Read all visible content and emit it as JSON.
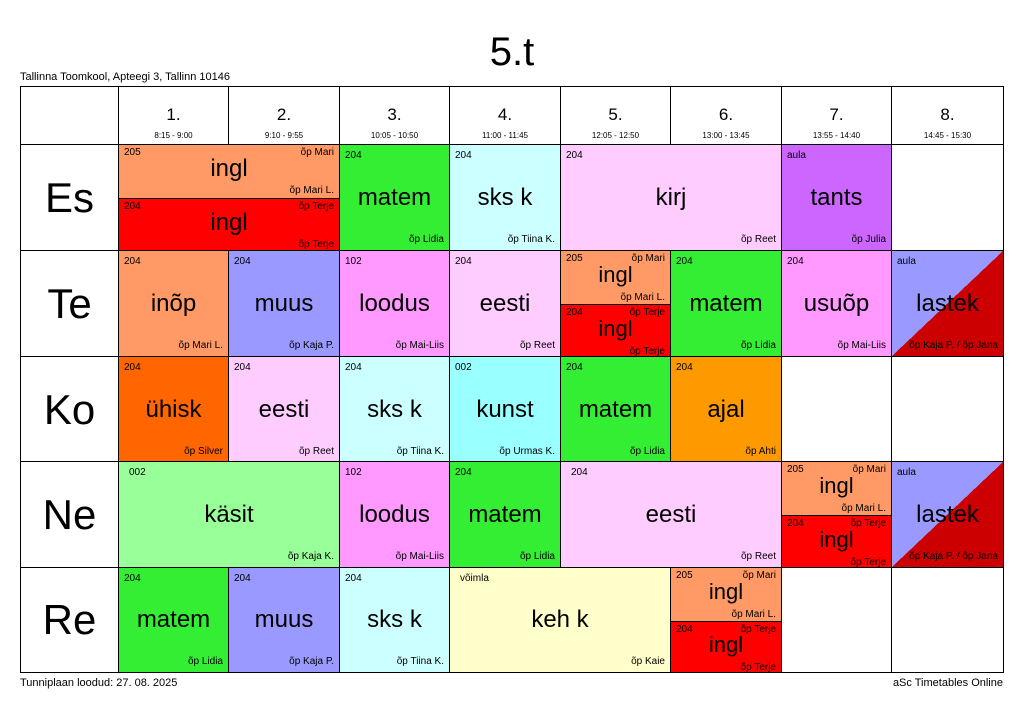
{
  "title": "5.t",
  "school": "Tallinna Toomkool, Apteegi 3, Tallinn 10146",
  "footer_left": "Tunniplaan loodud: 27. 08. 2025",
  "footer_right": "aSc Timetables Online",
  "periods": [
    {
      "num": "1.",
      "time": "8:15 - 9:00"
    },
    {
      "num": "2.",
      "time": "9:10 - 9:55"
    },
    {
      "num": "3.",
      "time": "10:05 - 10:50"
    },
    {
      "num": "4.",
      "time": "11:00 - 11:45"
    },
    {
      "num": "5.",
      "time": "12:05 - 12:50"
    },
    {
      "num": "6.",
      "time": "13:00 - 13:45"
    },
    {
      "num": "7.",
      "time": "13:55 - 14:40"
    },
    {
      "num": "8.",
      "time": "14:45 - 15:30"
    }
  ],
  "days": [
    "Es",
    "Te",
    "Ko",
    "Ne",
    "Re"
  ],
  "groups": {
    "g1_room": "205",
    "g1_subject": "ingl",
    "g1_teacher_top": "õp Mari",
    "g1_teacher": "õp Mari L.",
    "g2_room": "204",
    "g2_subject": "ingl",
    "g2_teacher_top": "õp Terje",
    "g2_teacher": "õp Terje"
  },
  "lessons": {
    "es_3": {
      "room": "204",
      "subject": "matem",
      "teacher": "õp Lidia",
      "color": "#33ee33"
    },
    "es_4": {
      "room": "204",
      "subject": "sks k",
      "teacher": "õp Tiina K.",
      "color": "#ccffff"
    },
    "es_56": {
      "room": "204",
      "subject": "kirj",
      "teacher": "õp Reet",
      "color": "#ffccff"
    },
    "es_7": {
      "room": "aula",
      "subject": "tants",
      "teacher": "õp Julia",
      "color": "#cc66ff"
    },
    "te_1": {
      "room": "204",
      "subject": "inõp",
      "teacher": "õp Mari L.",
      "color": "#ff9966"
    },
    "te_2": {
      "room": "204",
      "subject": "muus",
      "teacher": "õp Kaja P.",
      "color": "#9999ff"
    },
    "te_3": {
      "room": "102",
      "subject": "loodus",
      "teacher": "õp Mai-Liis",
      "color": "#ff99ff"
    },
    "te_4": {
      "room": "204",
      "subject": "eesti",
      "teacher": "õp Reet",
      "color": "#ffccff"
    },
    "te_6": {
      "room": "204",
      "subject": "matem",
      "teacher": "õp Lidia",
      "color": "#33ee33"
    },
    "te_7": {
      "room": "204",
      "subject": "usuõp",
      "teacher": "õp Mai-Liis",
      "color": "#ff99ff"
    },
    "te_8": {
      "room": "aula",
      "subject": "lastek",
      "teacher": "õp Kaja P. / õp Jana",
      "color_a": "#9999ff",
      "color_b": "#cc0000"
    },
    "ko_1": {
      "room": "204",
      "subject": "ühisk",
      "teacher": "õp Silver",
      "color": "#ff6600"
    },
    "ko_2": {
      "room": "204",
      "subject": "eesti",
      "teacher": "õp Reet",
      "color": "#ffccff"
    },
    "ko_3": {
      "room": "204",
      "subject": "sks k",
      "teacher": "õp Tiina K.",
      "color": "#ccffff"
    },
    "ko_4": {
      "room": "002",
      "subject": "kunst",
      "teacher": "õp Urmas K.",
      "color": "#99ffff"
    },
    "ko_5": {
      "room": "204",
      "subject": "matem",
      "teacher": "õp Lidia",
      "color": "#33ee33"
    },
    "ko_6": {
      "room": "204",
      "subject": "ajal",
      "teacher": "õp Ahti",
      "color": "#ff9900"
    },
    "ne_12": {
      "room": "002",
      "subject": "käsit",
      "teacher": "õp Kaja K.",
      "color": "#99ff99"
    },
    "ne_3": {
      "room": "102",
      "subject": "loodus",
      "teacher": "õp Mai-Liis",
      "color": "#ff99ff"
    },
    "ne_4": {
      "room": "204",
      "subject": "matem",
      "teacher": "õp Lidia",
      "color": "#33ee33"
    },
    "ne_56": {
      "room": "204",
      "subject": "eesti",
      "teacher": "õp Reet",
      "color": "#ffccff"
    },
    "ne_8": {
      "room": "aula",
      "subject": "lastek",
      "teacher": "õp Kaja P. / õp Jana",
      "color_a": "#9999ff",
      "color_b": "#cc0000"
    },
    "re_1": {
      "room": "204",
      "subject": "matem",
      "teacher": "õp Lidia",
      "color": "#33ee33"
    },
    "re_2": {
      "room": "204",
      "subject": "muus",
      "teacher": "õp Kaja P.",
      "color": "#9999ff"
    },
    "re_3": {
      "room": "204",
      "subject": "sks k",
      "teacher": "õp Tiina K.",
      "color": "#ccffff"
    },
    "re_45": {
      "room": "võimla",
      "subject": "keh k",
      "teacher": "õp Kaie",
      "color": "#ffffcc"
    }
  },
  "colors": {
    "group1": "#ff9966",
    "group2": "#ff0000"
  }
}
